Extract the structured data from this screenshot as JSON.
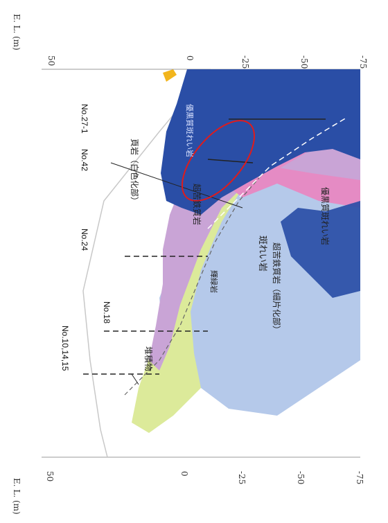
{
  "section": {
    "elev_label_top": "E. L. (m)",
    "elev_label_bottom": "E. L. (m)",
    "top_ticks": [
      "50",
      "0",
      "-25",
      "-50",
      "-75"
    ],
    "bottom_ticks": [
      "50",
      "0",
      "-25",
      "-50",
      "-75"
    ],
    "boreholes": [
      "No.27-1",
      "No.42",
      "No.24",
      "No.18",
      "No.10,14,15"
    ],
    "unit_labels": {
      "red_chert_white": "頁岩（白色化部）",
      "dolerite_upper": "優黒質斑れい岩",
      "ultramafic": "超苦鉄質岩",
      "gabbro": "斑れい岩",
      "ultramafic_schist": "超苦鉄質岩（細片化部）",
      "dolerite_lower": "優黒質斑れい岩",
      "greenstone": "輝緑岩",
      "deposit": "堆積物"
    }
  },
  "colors": {
    "dolerite": "#2a4ea6",
    "ultramafic": "#c9a4d6",
    "pink": "#e58bc4",
    "gabbro": "#b5c9ea",
    "greenstone": "#dcea9a",
    "orange": "#f2b51d",
    "highlight": "#e01b1b"
  }
}
